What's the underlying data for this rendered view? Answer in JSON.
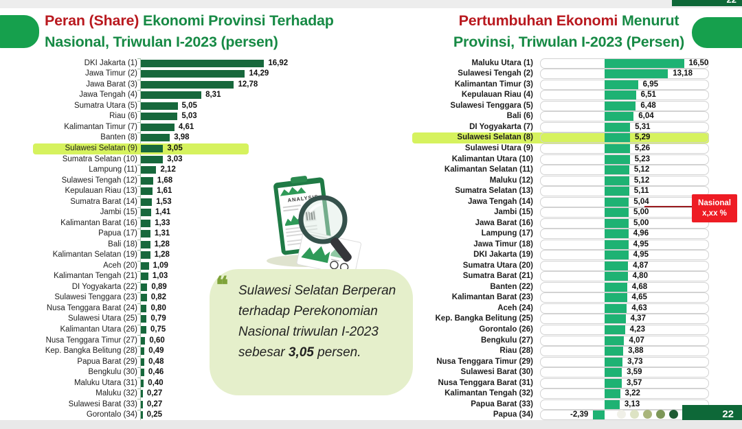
{
  "slide": {
    "page_number": "22",
    "pagination_dots": [
      "#f0f0e8",
      "#dde3c4",
      "#a9b57b",
      "#7d9758",
      "#1e5b33"
    ]
  },
  "left_chart": {
    "title": {
      "red": "Peran (Share)",
      "green_rest": " Ekonomi Provinsi Terhadap",
      "line2": "Nasional, Triwulan I-2023 (persen)"
    }
  },
  "right_chart": {
    "title": {
      "red": "Pertumbuhan Ekonomi",
      "green_rest": " Menurut",
      "line2": "Provinsi, Triwulan I-2023 (Persen)"
    },
    "callout": {
      "line1": "Nasional",
      "line2": "x,xx %"
    }
  },
  "quote": {
    "mark": "❝",
    "text_before": "Sulawesi Selatan Berperan terhadap Perekonomian Nasional triwulan I-2023 sebesar ",
    "bold": "3,05",
    "text_after": " persen."
  },
  "chart_data": [
    {
      "type": "bar",
      "orientation": "horizontal",
      "title": "Peran (Share) Ekonomi Provinsi Terhadap Nasional, Triwulan I-2023 (persen)",
      "bar_color": "#17683c",
      "highlight_color": "#d6f25e",
      "highlight_index": 8,
      "xlim": [
        0,
        18
      ],
      "categories": [
        "DKI Jakarta (1)",
        "Jawa Timur (2)",
        "Jawa Barat (3)",
        "Jawa Tengah (4)",
        "Sumatra Utara (5)",
        "Riau (6)",
        "Kalimantan Timur (7)",
        "Banten (8)",
        "Sulawesi Selatan (9)",
        "Sumatra Selatan (10)",
        "Lampung (11)",
        "Sulawesi Tengah (12)",
        "Kepulauan Riau (13)",
        "Sumatra Barat (14)",
        "Jambi (15)",
        "Kalimantan Barat (16)",
        "Papua (17)",
        "Bali (18)",
        "Kalimantan Selatan (19)",
        "Aceh (20)",
        "Kalimantan Tengah (21)",
        "DI Yogyakarta (22)",
        "Sulawesi Tenggara (23)",
        "Nusa Tenggara Barat (24)",
        "Sulawesi Utara (25)",
        "Kalimantan Utara (26)",
        "Nusa Tenggara Timur (27)",
        "Kep. Bangka Belitung (28)",
        "Papua Barat (29)",
        "Bengkulu (30)",
        "Maluku Utara (31)",
        "Maluku (32)",
        "Sulawesi Barat (33)",
        "Gorontalo (34)"
      ],
      "values": [
        16.92,
        14.29,
        12.78,
        8.31,
        5.05,
        5.03,
        4.61,
        3.98,
        3.05,
        3.03,
        2.12,
        1.68,
        1.61,
        1.53,
        1.41,
        1.33,
        1.31,
        1.28,
        1.28,
        1.09,
        1.03,
        0.89,
        0.82,
        0.8,
        0.79,
        0.75,
        0.6,
        0.49,
        0.48,
        0.46,
        0.4,
        0.27,
        0.27,
        0.25
      ],
      "value_labels": [
        "16,92",
        "14,29",
        "12,78",
        "8,31",
        "5,05",
        "5,03",
        "4,61",
        "3,98",
        "3,05",
        "3,03",
        "2,12",
        "1,68",
        "1,61",
        "1,53",
        "1,41",
        "1,33",
        "1,31",
        "1,28",
        "1,28",
        "1,09",
        "1,03",
        "0,89",
        "0,82",
        "0,80",
        "0,79",
        "0,75",
        "0,60",
        "0,49",
        "0,48",
        "0,46",
        "0,40",
        "0,27",
        "0,27",
        "0,25"
      ]
    },
    {
      "type": "bar",
      "orientation": "horizontal",
      "title": "Pertumbuhan Ekonomi Menurut Provinsi, Triwulan I-2023 (Persen)",
      "bar_color": "#1eb273",
      "highlight_color": "#d6f25e",
      "highlight_index": 7,
      "xlim": [
        -4,
        18
      ],
      "categories": [
        "Maluku Utara (1)",
        "Sulawesi Tengah (2)",
        "Kalimantan Timur (3)",
        "Kepulauan Riau (4)",
        "Sulawesi Tenggara (5)",
        "Bali (6)",
        "DI Yogyakarta (7)",
        "Sulawesi Selatan (8)",
        "Sulawesi Utara (9)",
        "Kalimantan Utara (10)",
        "Kalimantan Selatan (11)",
        "Maluku (12)",
        "Sumatra Selatan (13)",
        "Jawa Tengah (14)",
        "Jambi (15)",
        "Jawa Barat (16)",
        "Lampung (17)",
        "Jawa Timur (18)",
        "DKI Jakarta (19)",
        "Sumatra Utara (20)",
        "Sumatra Barat (21)",
        "Banten (22)",
        "Kalimantan Barat (23)",
        "Aceh (24)",
        "Kep. Bangka Belitung (25)",
        "Gorontalo (26)",
        "Bengkulu (27)",
        "Riau (28)",
        "Nusa Tenggara Timur (29)",
        "Sulawesi Barat (30)",
        "Nusa Tenggara Barat (31)",
        "Kalimantan Tengah (32)",
        "Papua Barat (33)",
        "Papua (34)"
      ],
      "values": [
        16.5,
        13.18,
        6.95,
        6.51,
        6.48,
        6.04,
        5.31,
        5.29,
        5.26,
        5.23,
        5.12,
        5.12,
        5.11,
        5.04,
        5.0,
        5.0,
        4.96,
        4.95,
        4.95,
        4.87,
        4.8,
        4.68,
        4.65,
        4.63,
        4.37,
        4.23,
        4.07,
        3.88,
        3.73,
        3.59,
        3.57,
        3.22,
        3.13,
        -2.39
      ],
      "value_labels": [
        "16,50",
        "13,18",
        "6,95",
        "6,51",
        "6,48",
        "6,04",
        "5,31",
        "5,29",
        "5,26",
        "5,23",
        "5,12",
        "5,12",
        "5,11",
        "5,04",
        "5,00",
        "5,00",
        "4,96",
        "4,95",
        "4,95",
        "4,87",
        "4,80",
        "4,68",
        "4,65",
        "4,63",
        "4,37",
        "4,23",
        "4,07",
        "3,88",
        "3,73",
        "3,59",
        "3,57",
        "3,22",
        "3,13",
        "-2,39"
      ]
    }
  ]
}
